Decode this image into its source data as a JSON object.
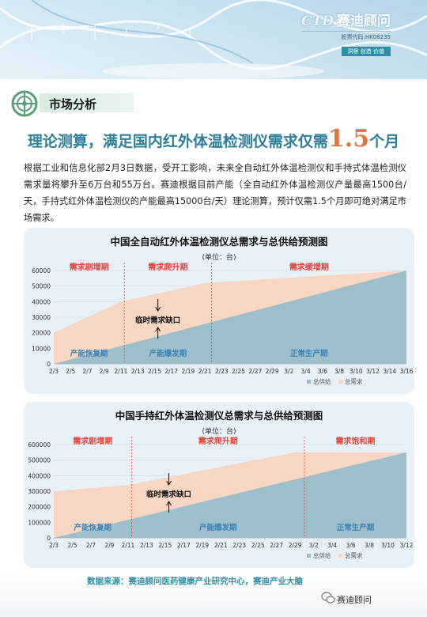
{
  "header": {
    "brand_en": "CTD",
    "brand_cn": "赛迪顾问",
    "stock_code": "股票代码:HK08235",
    "slogan": "洞察 创造 价值"
  },
  "section": {
    "title": "市场分析"
  },
  "headline": {
    "prefix": "理论测算，满足国内红外体温检测仪需求仅需",
    "number": "1.5",
    "suffix": "个月"
  },
  "intro": "根据工业和信息化部2月3日数据，受开工影响，未来全自动红外体温检测仪和手持式体温检测仪需求量将攀升至6万台和55万台。赛迪根据目前产能（全自动红外体温检测仪产量最高1500台/天，手持式红外体温检测仪的产能最高15000台/天）理论测算，预计仅需1.5个月即可绝对满足市场需求。",
  "chart_data": [
    {
      "type": "area",
      "title": "中国全自动红外体温检测仪总需求与总供给预测图",
      "subtitle": "(单位：台)",
      "categories": [
        "2/3",
        "2/5",
        "2/7",
        "2/9",
        "2/11",
        "2/13",
        "2/15",
        "2/17",
        "2/19",
        "2/21",
        "2/23",
        "2/25",
        "2/27",
        "2/29",
        "3/2",
        "3/4",
        "3/6",
        "3/8",
        "3/10",
        "3/12",
        "3/14",
        "3/16"
      ],
      "ylim": [
        0,
        60000
      ],
      "yticks": [
        0,
        10000,
        20000,
        30000,
        40000,
        50000,
        60000
      ],
      "series": [
        {
          "name": "总供给",
          "color": "#9cbfcb",
          "x": [
            0,
            21
          ],
          "values": [
            0,
            60000
          ]
        },
        {
          "name": "总需求",
          "color": "#f7d6c2",
          "x": [
            0,
            4,
            9,
            21
          ],
          "values": [
            20000,
            40000,
            52000,
            60000
          ]
        }
      ],
      "phases": [
        "需求剧增期",
        "需求爬升期",
        "需求缓增期"
      ],
      "phase_bounds": [
        4.2,
        9.4
      ],
      "supply_phases": [
        "产能恢复期",
        "产能爆发期",
        "正常生产期"
      ],
      "gap_label": "临时需求缺口",
      "gap_x": 6.2,
      "legend": "bottom-right"
    },
    {
      "type": "area",
      "title": "中国手持红外体温检测仪总需求与总供给预测图",
      "subtitle": "(单位：台)",
      "categories": [
        "2/3",
        "2/5",
        "2/7",
        "2/9",
        "2/11",
        "2/13",
        "2/15",
        "2/17",
        "2/19",
        "2/21",
        "2/23",
        "2/25",
        "2/27",
        "2/29",
        "3/2",
        "3/4",
        "3/6",
        "3/8",
        "3/10",
        "3/12"
      ],
      "ylim": [
        0,
        600000
      ],
      "yticks": [
        0,
        100000,
        200000,
        300000,
        400000,
        500000,
        600000
      ],
      "series": [
        {
          "name": "总供给",
          "color": "#9cbfcb",
          "x": [
            0,
            19
          ],
          "values": [
            0,
            550000
          ]
        },
        {
          "name": "总需求",
          "color": "#f7d6c2",
          "x": [
            0,
            4,
            13,
            19
          ],
          "values": [
            300000,
            340000,
            550000,
            550000
          ]
        }
      ],
      "phases": [
        "需求剧增期",
        "需求爬升期",
        "需求饱和期"
      ],
      "phase_bounds": [
        4.2,
        13.5
      ],
      "supply_phases": [
        "产能恢复期",
        "产能爆发期",
        "正常生产期"
      ],
      "gap_label": "临时需求缺口",
      "gap_x": 6.2,
      "legend": "bottom-right"
    }
  ],
  "source": "数据来源：赛迪顾问医药健康产业研究中心，赛迪产业大脑",
  "wechat": "赛迪顾问",
  "colors": {
    "accent_blue": "#2d7f9a",
    "accent_orange": "#e0763c",
    "phase_red": "#e8413a"
  }
}
